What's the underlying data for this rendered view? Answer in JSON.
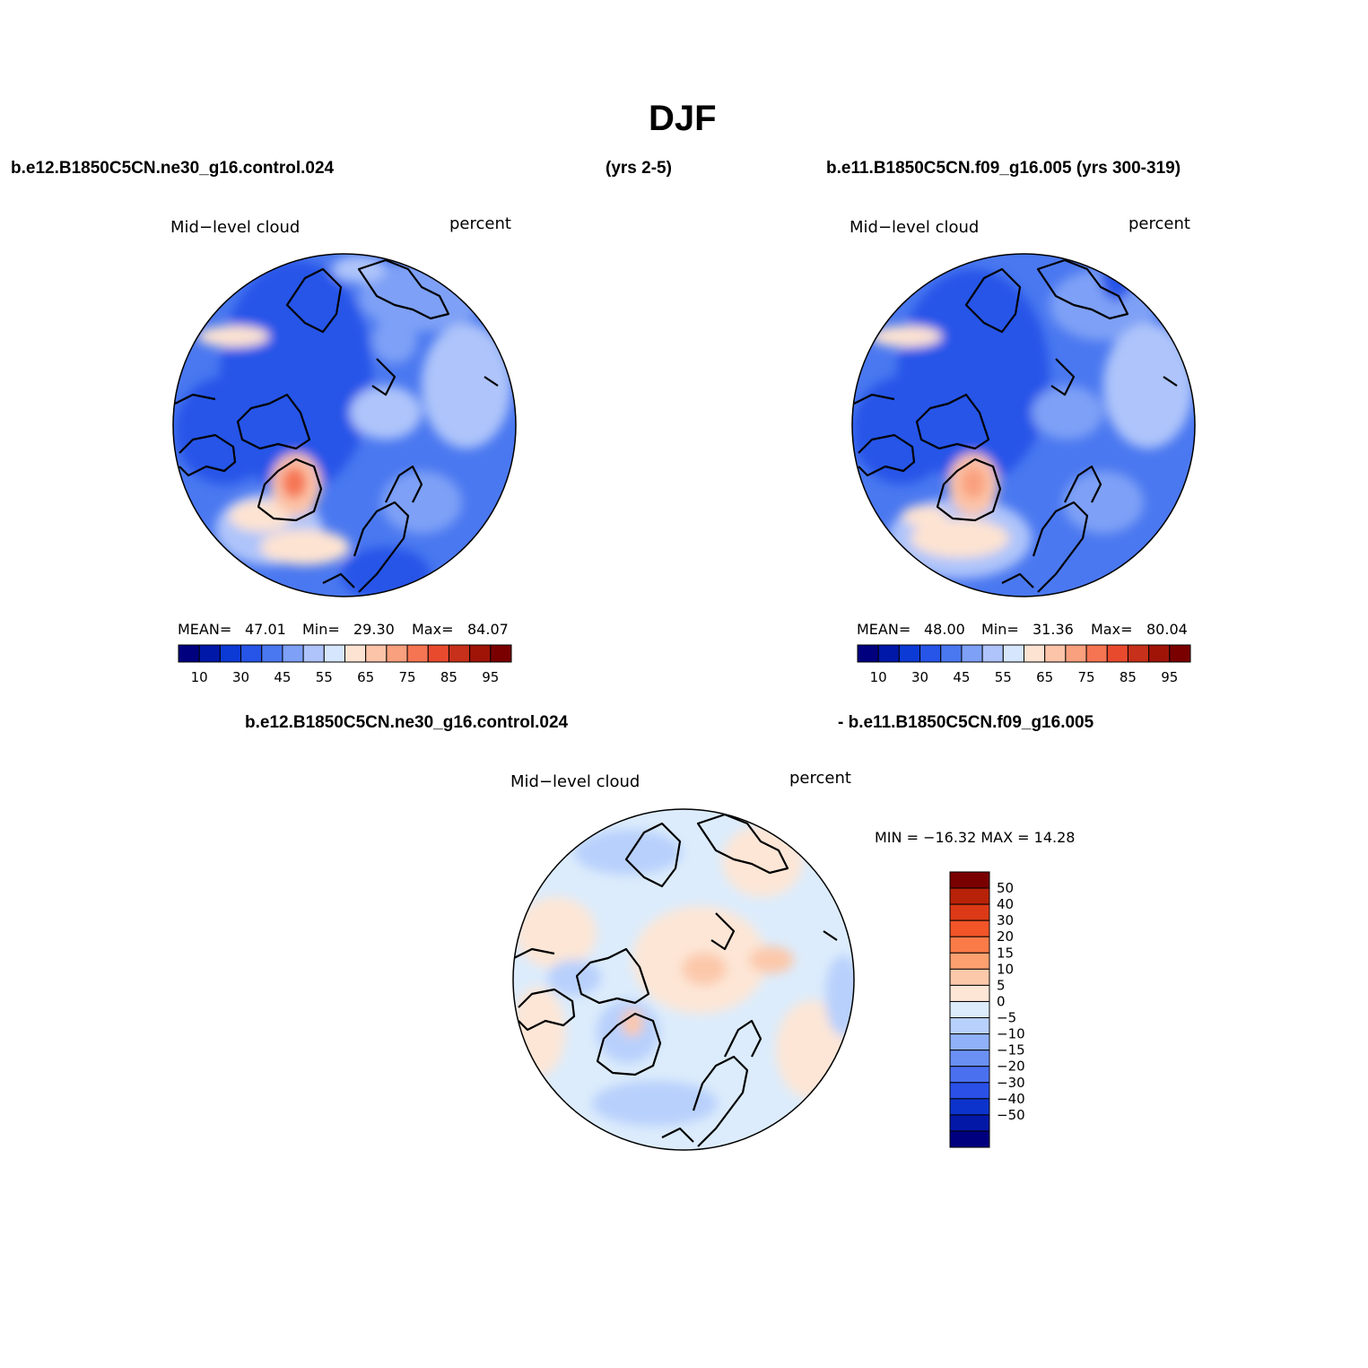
{
  "figure": {
    "title": "DJF",
    "header_left": "b.e12.B1850C5CN.ne30_g16.control.024",
    "header_mid": "(yrs 2-5)",
    "header_right": "b.e11.B1850C5CN.f09_g16.005 (yrs 300-319)",
    "diff_left": "b.e12.B1850C5CN.ne30_g16.control.024",
    "diff_right": "- b.e11.B1850C5CN.f09_g16.005"
  },
  "panels": [
    {
      "variable": "Mid−level cloud",
      "units": "percent",
      "mean_label": "MEAN=",
      "mean": "47.01",
      "min_label": "Min=",
      "min": "29.30",
      "max_label": "Max=",
      "max": "84.07"
    },
    {
      "variable": "Mid−level cloud",
      "units": "percent",
      "mean_label": "MEAN=",
      "mean": "48.00",
      "min_label": "Min=",
      "min": "31.36",
      "max_label": "Max=",
      "max": "80.04"
    },
    {
      "variable": "Mid−level cloud",
      "units": "percent",
      "minmax": "MIN = −16.32 MAX =  14.28"
    }
  ],
  "colorbar_abs": {
    "colors": [
      "#00007f",
      "#0018a8",
      "#0c3ad4",
      "#2655e8",
      "#4a78f0",
      "#7ea0f6",
      "#aec4fa",
      "#d6e6fc",
      "#fde3d2",
      "#fcc4a8",
      "#f9a07e",
      "#f57552",
      "#e84a2e",
      "#c7301a",
      "#a01408",
      "#7a0000"
    ],
    "tick_labels": [
      "10",
      "30",
      "45",
      "55",
      "65",
      "75",
      "85",
      "95"
    ]
  },
  "colorbar_diff": {
    "colors": [
      "#7a0000",
      "#b82208",
      "#dc3a16",
      "#f25528",
      "#fa7b48",
      "#fca070",
      "#fcc8aa",
      "#fde6d6",
      "#dcecfc",
      "#b8d0fc",
      "#90b0f8",
      "#6a90f4",
      "#4a70f0",
      "#2a50e8",
      "#0c34cc",
      "#0418a8",
      "#00007f"
    ],
    "tick_labels": [
      "50",
      "40",
      "30",
      "20",
      "15",
      "10",
      "5",
      "0",
      "−5",
      "−10",
      "−15",
      "−20",
      "−30",
      "−40",
      "−50"
    ]
  }
}
